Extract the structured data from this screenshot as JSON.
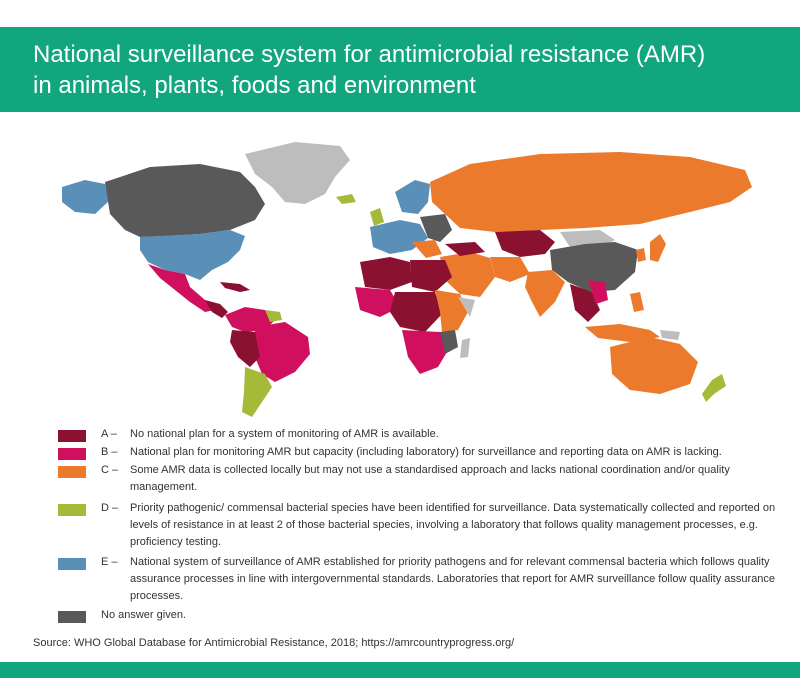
{
  "title_lines": [
    "National surveillance system for antimicrobial resistance (AMR)",
    "in animals, plants, foods and environment"
  ],
  "colors": {
    "header": "#11a67e",
    "A": "#8b1131",
    "B": "#d0105e",
    "C": "#ec7a2c",
    "D": "#a6ba3a",
    "E": "#5a8fb8",
    "no_answer": "#595959",
    "not_shown": "#bdbdbd"
  },
  "legend": [
    {
      "code": "A –",
      "color_key": "A",
      "text": "No national plan for a system of monitoring of AMR is available."
    },
    {
      "code": "B –",
      "color_key": "B",
      "text": "National plan for monitoring AMR but capacity (including laboratory) for surveillance and reporting data on AMR is lacking."
    },
    {
      "code": "C –",
      "color_key": "C",
      "text": "Some AMR data is collected locally but may not use a standardised approach and lacks national coordination and/or quality management."
    },
    {
      "code": "D –",
      "color_key": "D",
      "text": "Priority pathogenic/ commensal bacterial species have been identified for surveillance. Data systematically collected and reported on levels of resistance in at least 2 of those bacterial species, involving a laboratory that follows quality management processes, e.g. proficiency testing."
    },
    {
      "code": "E –",
      "color_key": "E",
      "text": "National system of surveillance of AMR established for priority pathogens and for relevant commensal bacteria which follows quality assurance processes in line with intergovernmental standards. Laboratories that report for AMR surveillance follow quality assurance processes."
    },
    {
      "code": "",
      "color_key": "no_answer",
      "text": "No answer given."
    }
  ],
  "source": "Source: WHO Global Database for Antimicrobial Resistance, 2018; https://amrcountryprogress.org/"
}
